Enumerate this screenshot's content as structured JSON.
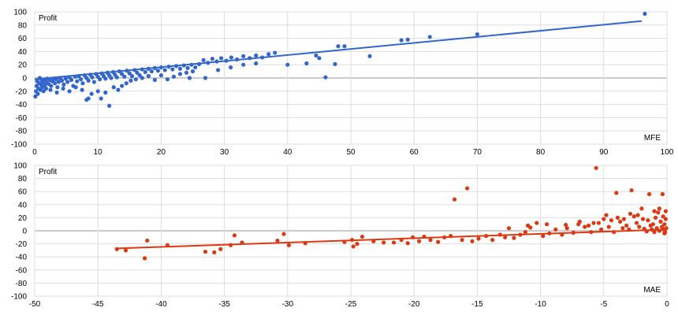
{
  "chart_data": [
    {
      "type": "scatter",
      "name": "mfe-chart",
      "axis_label_inside": "Profit",
      "xlabel": "MFE",
      "xlim": [
        0,
        100
      ],
      "ylim": [
        -100,
        100
      ],
      "xticks": [
        0,
        10,
        20,
        30,
        40,
        50,
        60,
        70,
        80,
        90,
        100
      ],
      "yticks": [
        100,
        80,
        60,
        40,
        20,
        0,
        -20,
        -40,
        -60,
        -80,
        -100
      ],
      "grid": true,
      "color": "#3366cc",
      "trendline": {
        "x": [
          0,
          96
        ],
        "y": [
          -2,
          86
        ]
      },
      "points": [
        [
          0.1,
          -28
        ],
        [
          0.2,
          -20
        ],
        [
          0.3,
          -12
        ],
        [
          0.4,
          -5
        ],
        [
          0.5,
          -24
        ],
        [
          0.6,
          -16
        ],
        [
          0.7,
          -8
        ],
        [
          0.8,
          0
        ],
        [
          0.9,
          -18
        ],
        [
          1.0,
          -10
        ],
        [
          1.1,
          -3
        ],
        [
          1.2,
          -14
        ],
        [
          1.3,
          -6
        ],
        [
          1.4,
          -20
        ],
        [
          1.5,
          -2
        ],
        [
          1.6,
          -11
        ],
        [
          1.7,
          -4
        ],
        [
          1.8,
          -16
        ],
        [
          1.9,
          -7
        ],
        [
          2.0,
          -1
        ],
        [
          2.2,
          -9
        ],
        [
          2.4,
          -3
        ],
        [
          2.6,
          -12
        ],
        [
          2.8,
          -5
        ],
        [
          3.0,
          -1
        ],
        [
          3.2,
          -8
        ],
        [
          3.4,
          -2
        ],
        [
          3.6,
          -14
        ],
        [
          3.8,
          -6
        ],
        [
          4.0,
          0
        ],
        [
          4.3,
          -4
        ],
        [
          4.6,
          -10
        ],
        [
          4.9,
          -1
        ],
        [
          5.2,
          -6
        ],
        [
          5.5,
          1
        ],
        [
          5.8,
          -3
        ],
        [
          6.1,
          -12
        ],
        [
          6.4,
          2
        ],
        [
          6.7,
          -5
        ],
        [
          7.0,
          3
        ],
        [
          7.3,
          -2
        ],
        [
          7.6,
          -8
        ],
        [
          7.9,
          4
        ],
        [
          8.2,
          0
        ],
        [
          8.5,
          -4
        ],
        [
          8.8,
          5
        ],
        [
          9.1,
          1
        ],
        [
          9.4,
          -6
        ],
        [
          9.7,
          6
        ],
        [
          10.0,
          2
        ],
        [
          10.3,
          -2
        ],
        [
          10.6,
          7
        ],
        [
          10.9,
          3
        ],
        [
          11.2,
          -1
        ],
        [
          11.5,
          8
        ],
        [
          11.8,
          4
        ],
        [
          12.1,
          0
        ],
        [
          12.4,
          9
        ],
        [
          12.7,
          5
        ],
        [
          13.0,
          1
        ],
        [
          13.4,
          10
        ],
        [
          13.8,
          6
        ],
        [
          14.2,
          2
        ],
        [
          14.6,
          11
        ],
        [
          15.0,
          7
        ],
        [
          15.4,
          3
        ],
        [
          15.8,
          12
        ],
        [
          16.2,
          8
        ],
        [
          16.6,
          4
        ],
        [
          17.0,
          13
        ],
        [
          17.5,
          9
        ],
        [
          18.0,
          14
        ],
        [
          18.5,
          10
        ],
        [
          19.0,
          15
        ],
        [
          19.5,
          11
        ],
        [
          20.0,
          16
        ],
        [
          20.6,
          12
        ],
        [
          21.2,
          17
        ],
        [
          21.8,
          13
        ],
        [
          22.4,
          18
        ],
        [
          23.0,
          14
        ],
        [
          23.6,
          19
        ],
        [
          24.2,
          15
        ],
        [
          24.8,
          20
        ],
        [
          25.4,
          16
        ],
        [
          26.0,
          21
        ],
        [
          26.7,
          27
        ],
        [
          27.4,
          23
        ],
        [
          28.1,
          29
        ],
        [
          28.8,
          25
        ],
        [
          29.5,
          30
        ],
        [
          30.3,
          26
        ],
        [
          31.1,
          31
        ],
        [
          32.0,
          28
        ],
        [
          33.0,
          33
        ],
        [
          34.0,
          30
        ],
        [
          35.0,
          34
        ],
        [
          36.0,
          31
        ],
        [
          37.0,
          36
        ],
        [
          38.0,
          38
        ],
        [
          2.5,
          -18
        ],
        [
          3.5,
          -22
        ],
        [
          4.5,
          -16
        ],
        [
          5.5,
          -20
        ],
        [
          6.5,
          -14
        ],
        [
          7.5,
          -18
        ],
        [
          8.2,
          -33
        ],
        [
          8.5,
          -31
        ],
        [
          9.0,
          -24
        ],
        [
          10.0,
          -20
        ],
        [
          10.5,
          -31
        ],
        [
          11.2,
          -22
        ],
        [
          11.8,
          -42
        ],
        [
          12.5,
          -14
        ],
        [
          13.2,
          -18
        ],
        [
          13.8,
          -12
        ],
        [
          14.5,
          -8
        ],
        [
          15.2,
          -4
        ],
        [
          16.0,
          -2
        ],
        [
          17.0,
          0
        ],
        [
          18.0,
          3
        ],
        [
          19.0,
          -3
        ],
        [
          20.0,
          4
        ],
        [
          21.0,
          -2
        ],
        [
          22.0,
          2
        ],
        [
          23.0,
          6
        ],
        [
          24.0,
          8
        ],
        [
          25.0,
          10
        ],
        [
          24.5,
          0
        ],
        [
          27.0,
          0
        ],
        [
          29.0,
          12
        ],
        [
          31.0,
          16
        ],
        [
          33.0,
          20
        ],
        [
          35.0,
          22
        ],
        [
          40.0,
          20
        ],
        [
          43.0,
          22
        ],
        [
          44.5,
          34
        ],
        [
          45.0,
          30
        ],
        [
          46.0,
          1
        ],
        [
          47.5,
          21
        ],
        [
          48.0,
          48
        ],
        [
          49.0,
          48
        ],
        [
          53.0,
          33
        ],
        [
          58.0,
          57
        ],
        [
          59.0,
          58
        ],
        [
          62.5,
          62
        ],
        [
          70.0,
          66
        ],
        [
          96.5,
          97
        ]
      ]
    },
    {
      "type": "scatter",
      "name": "mae-chart",
      "axis_label_inside": "Profit",
      "xlabel": "MAE",
      "xlim": [
        -50,
        0
      ],
      "ylim": [
        -100,
        100
      ],
      "xticks": [
        -50,
        -45,
        -40,
        -35,
        -30,
        -25,
        -20,
        -15,
        -10,
        -5,
        0
      ],
      "yticks": [
        100,
        80,
        60,
        40,
        20,
        0,
        -20,
        -40,
        -60,
        -80,
        -100
      ],
      "grid": true,
      "color": "#dc3912",
      "trendline": {
        "x": [
          -43.5,
          0
        ],
        "y": [
          -27,
          2
        ]
      },
      "points": [
        [
          -43.5,
          -28
        ],
        [
          -42.8,
          -30
        ],
        [
          -41.3,
          -42
        ],
        [
          -41.1,
          -15
        ],
        [
          -39.5,
          -22
        ],
        [
          -36.5,
          -32
        ],
        [
          -35.8,
          -33
        ],
        [
          -35.3,
          -28
        ],
        [
          -34.5,
          -22
        ],
        [
          -34.2,
          -7
        ],
        [
          -33.6,
          -18
        ],
        [
          -30.8,
          -15
        ],
        [
          -30.3,
          -5
        ],
        [
          -29.9,
          -22
        ],
        [
          -28.6,
          -19
        ],
        [
          -25.5,
          -17
        ],
        [
          -24.9,
          -14
        ],
        [
          -24.8,
          -24
        ],
        [
          -24.5,
          -20
        ],
        [
          -24.1,
          -9
        ],
        [
          -23.2,
          -16
        ],
        [
          -22.4,
          -18
        ],
        [
          -21.6,
          -18
        ],
        [
          -21.0,
          -14
        ],
        [
          -20.5,
          -19
        ],
        [
          -20.1,
          -10
        ],
        [
          -19.6,
          -16
        ],
        [
          -19.2,
          -9
        ],
        [
          -18.7,
          -14
        ],
        [
          -18.1,
          -17
        ],
        [
          -17.6,
          -10
        ],
        [
          -17.1,
          -8
        ],
        [
          -16.8,
          48
        ],
        [
          -16.2,
          -14
        ],
        [
          -15.8,
          65
        ],
        [
          -15.4,
          -16
        ],
        [
          -14.9,
          -12
        ],
        [
          -14.3,
          -8
        ],
        [
          -13.8,
          -14
        ],
        [
          -13.2,
          -6
        ],
        [
          -12.8,
          -10
        ],
        [
          -12.1,
          -11
        ],
        [
          -11.6,
          -6
        ],
        [
          -11.2,
          -2
        ],
        [
          -10.8,
          5
        ],
        [
          -10.3,
          12
        ],
        [
          -9.8,
          -8
        ],
        [
          -9.3,
          -4
        ],
        [
          -8.8,
          2
        ],
        [
          -8.3,
          -6
        ],
        [
          -7.9,
          4
        ],
        [
          -7.4,
          -3
        ],
        [
          -6.9,
          14
        ],
        [
          -6.5,
          6
        ],
        [
          -6.0,
          -2
        ],
        [
          -5.6,
          96
        ],
        [
          -5.4,
          12
        ],
        [
          -5.2,
          2
        ],
        [
          -4.8,
          24
        ],
        [
          -4.6,
          6
        ],
        [
          -4.2,
          -2
        ],
        [
          -4.0,
          58
        ],
        [
          -3.7,
          14
        ],
        [
          -3.5,
          4
        ],
        [
          -3.2,
          8
        ],
        [
          -3.0,
          2
        ],
        [
          -2.8,
          62
        ],
        [
          -2.6,
          22
        ],
        [
          -2.4,
          12
        ],
        [
          -2.2,
          6
        ],
        [
          -2.0,
          34
        ],
        [
          -1.8,
          3
        ],
        [
          -1.6,
          -1
        ],
        [
          -1.5,
          16
        ],
        [
          -1.4,
          56
        ],
        [
          -1.3,
          8
        ],
        [
          -1.2,
          2
        ],
        [
          -1.1,
          10
        ],
        [
          -1.0,
          -2
        ],
        [
          -0.9,
          20
        ],
        [
          -0.8,
          4
        ],
        [
          -0.7,
          28
        ],
        [
          -0.6,
          0
        ],
        [
          -0.5,
          14
        ],
        [
          -0.4,
          6
        ],
        [
          -0.35,
          56
        ],
        [
          -0.3,
          22
        ],
        [
          -0.25,
          2
        ],
        [
          -0.2,
          10
        ],
        [
          -0.15,
          -2
        ],
        [
          -0.1,
          18
        ],
        [
          -0.05,
          4
        ],
        [
          -12.5,
          4
        ],
        [
          -11.0,
          8
        ],
        [
          -9.5,
          10
        ],
        [
          -8.0,
          9
        ],
        [
          -7.0,
          10
        ],
        [
          -6.2,
          8
        ],
        [
          -5.8,
          12
        ],
        [
          -5.0,
          18
        ],
        [
          -4.4,
          16
        ],
        [
          -3.9,
          20
        ],
        [
          -3.4,
          18
        ],
        [
          -2.9,
          26
        ],
        [
          -2.3,
          24
        ],
        [
          -1.9,
          18
        ],
        [
          -1.0,
          30
        ],
        [
          -0.6,
          34
        ],
        [
          -0.2,
          -4
        ],
        [
          -0.1,
          30
        ]
      ]
    }
  ]
}
